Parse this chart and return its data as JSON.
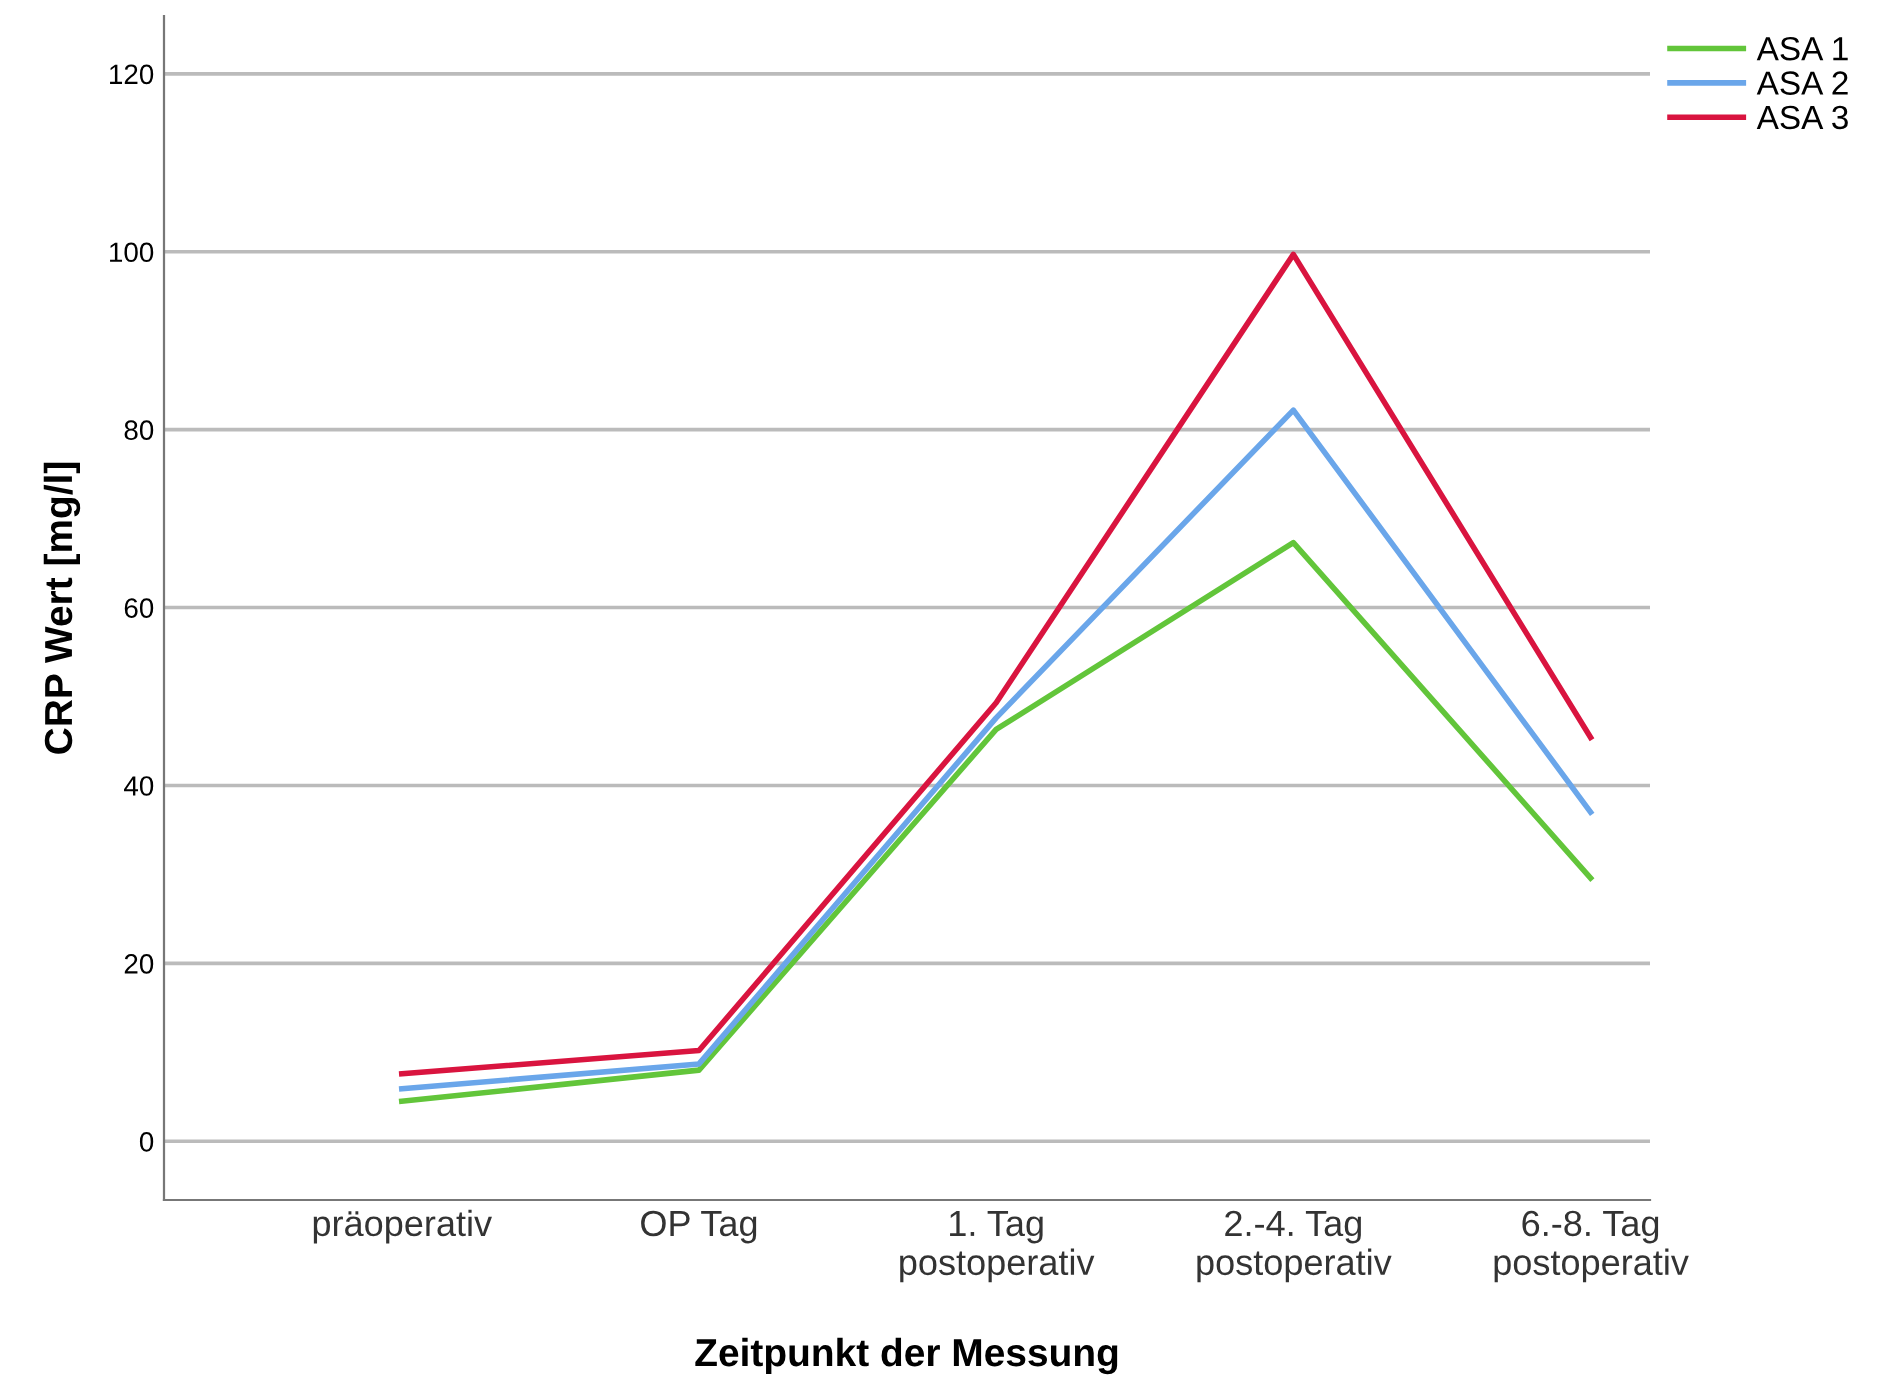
{
  "chart_data": {
    "type": "line",
    "xlabel": "Zeitpunkt der Messung",
    "ylabel": "CRP Wert [mg/l]",
    "categories": [
      "präoperativ",
      "OP Tag",
      "1. Tag\npostoperativ",
      "2.-4. Tag\npostoperativ",
      "6.-8. Tag\npostoperativ"
    ],
    "series": [
      {
        "name": "ASA 1",
        "color": "#62c53a",
        "values": [
          4.5,
          8.0,
          46.3,
          67.3,
          29.6
        ]
      },
      {
        "name": "ASA 2",
        "color": "#6aa6ea",
        "values": [
          5.9,
          8.7,
          47.6,
          82.2,
          37.0
        ]
      },
      {
        "name": "ASA 3",
        "color": "#d9143f",
        "values": [
          7.6,
          10.2,
          49.3,
          99.7,
          45.4
        ]
      }
    ],
    "ylim": [
      -6.6,
      126.5
    ],
    "yticks": [
      0,
      20,
      40,
      60,
      80,
      100,
      120
    ],
    "grid": "y",
    "legend": "top right",
    "marker": "none",
    "line_style": "solid"
  }
}
